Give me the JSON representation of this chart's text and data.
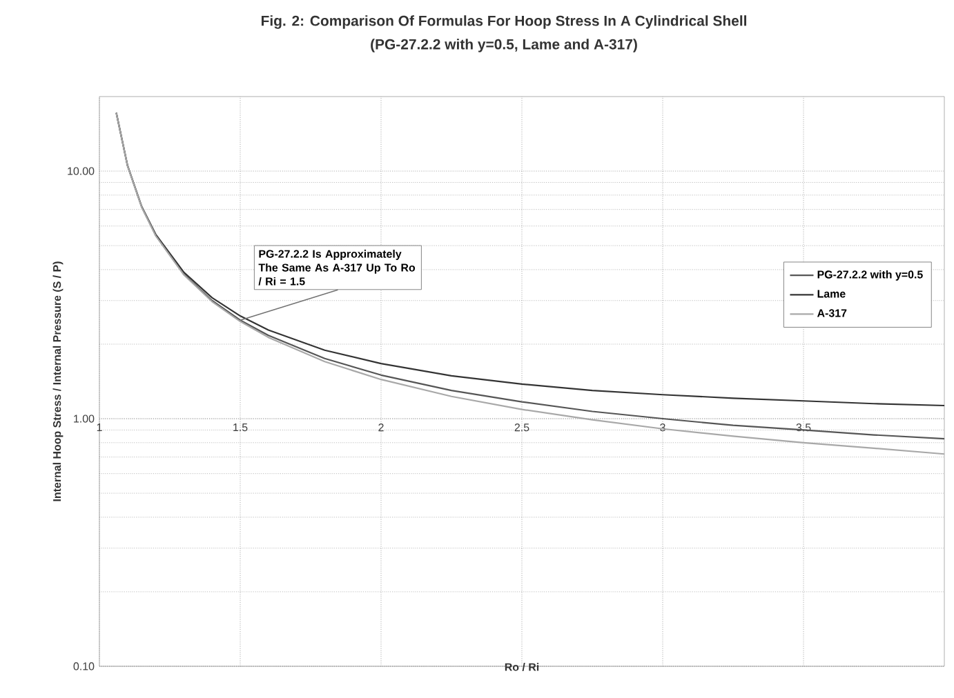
{
  "chart_data": {
    "type": "line",
    "title": "Fig. 2: Comparison Of Formulas For Hoop Stress In A Cylindrical Shell",
    "subtitle": "(PG-27.2.2 with y=0.5, Lame and A-317)",
    "xlabel": "Ro / Ri",
    "ylabel": "Internal Hoop Stress / Internal Pressure (S / P)",
    "x": [
      1.06,
      1.1,
      1.15,
      1.2,
      1.3,
      1.4,
      1.5,
      1.6,
      1.8,
      2,
      2.25,
      2.5,
      2.75,
      3,
      3.25,
      3.5,
      3.75,
      4
    ],
    "series": [
      {
        "name": "PG-27.2.2 with y=0.5",
        "color": "#555555",
        "values": [
          17.17,
          10.5,
          7.17,
          5.5,
          3.83,
          3.0,
          2.5,
          2.17,
          1.75,
          1.5,
          1.3,
          1.17,
          1.07,
          1.0,
          0.94,
          0.9,
          0.86,
          0.83
        ]
      },
      {
        "name": "Lame",
        "color": "#333333",
        "values": [
          17.2,
          10.52,
          7.2,
          5.55,
          3.9,
          3.08,
          2.6,
          2.28,
          1.89,
          1.67,
          1.49,
          1.38,
          1.3,
          1.25,
          1.21,
          1.18,
          1.15,
          1.13
        ]
      },
      {
        "name": "A-317",
        "color": "#a8a8a8",
        "values": [
          17.16,
          10.49,
          7.16,
          5.48,
          3.81,
          2.97,
          2.47,
          2.13,
          1.7,
          1.44,
          1.23,
          1.09,
          0.99,
          0.91,
          0.85,
          0.8,
          0.76,
          0.72
        ]
      }
    ],
    "xlim": [
      1,
      4
    ],
    "xticks": [
      1,
      1.5,
      2,
      2.5,
      3,
      3.5
    ],
    "ylim": [
      0.1,
      20
    ],
    "yticks": [
      {
        "value": 0.1,
        "label": "0.10"
      },
      {
        "value": 1,
        "label": "1.00"
      },
      {
        "value": 10,
        "label": "10.00"
      }
    ],
    "log": "y",
    "grid": true,
    "legend": "right",
    "marker": "none",
    "line_style": "solid",
    "annotations": [
      {
        "text": "PG-27.2.2 Is Approximately The Same As A-317 Up To Ro / Ri = 1.5",
        "x": 1.5,
        "y": 2.5
      }
    ]
  }
}
